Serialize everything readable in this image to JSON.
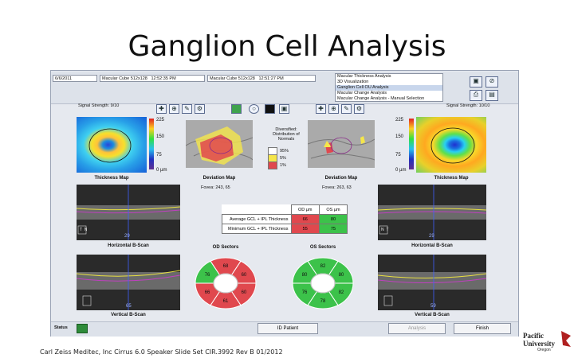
{
  "slide": {
    "title": "Ganglion Cell Analysis",
    "footer": "Carl Zeiss Meditec, Inc Cirrus 6.0 Speaker Slide Set CIR.3992 Rev B 01/2012",
    "logo_text": "Pacific University Oregon"
  },
  "header": {
    "date": "6/6/2011",
    "scan_left": "Macular Cube 512x128",
    "time_left": "12:52:35 PM",
    "scan_right": "Macular Cube 512x128",
    "time_right": "12:51:27 PM",
    "analysis_options": [
      "Macular Thickness Analysis",
      "3D Visualization",
      "Ganglion Cell OU Analysis",
      "Macular Change Analysis",
      "Macular Change Analysis - Manual Selection"
    ],
    "selected_index": 2
  },
  "left_eye": {
    "signal_strength": "Signal Strength: 9/10",
    "thickness_map_label": "Thickness Map",
    "deviation_map_label": "Deviation Map",
    "fovea": "Fovea: 243, 65",
    "horizontal_label": "Horizontal B-Scan",
    "vertical_label": "Vertical B-Scan",
    "h_index": "29",
    "v_index": "65"
  },
  "right_eye": {
    "signal_strength": "Signal Strength: 10/10",
    "thickness_map_label": "Thickness Map",
    "deviation_map_label": "Deviation Map",
    "fovea": "Fovea: 263, 63",
    "horizontal_label": "Horizontal B-Scan",
    "vertical_label": "Vertical B-Scan",
    "h_index": "29",
    "v_index": "59"
  },
  "scale": {
    "ticks": [
      "225",
      "150",
      "75",
      "0 µm"
    ]
  },
  "legend": {
    "title": "Diversified: Distribution of Normals",
    "items": [
      {
        "label": "95%",
        "color": "#ffffff"
      },
      {
        "label": "5%",
        "color": "#f5e64a"
      },
      {
        "label": "1%",
        "color": "#e0484e"
      }
    ]
  },
  "gcl_table": {
    "headers": [
      "",
      "OD µm",
      "OS µm"
    ],
    "rows": [
      {
        "label": "Average GCL + IPL Thickness",
        "od": "66",
        "os": "80",
        "od_color": "#e0484e",
        "os_color": "#3cc24a"
      },
      {
        "label": "Minimum GCL + IPL Thickness",
        "od": "55",
        "os": "75",
        "od_color": "#e0484e",
        "os_color": "#3cc24a"
      }
    ]
  },
  "sectors": {
    "od": {
      "title": "OD Sectors",
      "values": [
        "68",
        "60",
        "60",
        "61",
        "66",
        "76"
      ],
      "colors": [
        "#e0484e",
        "#e0484e",
        "#e0484e",
        "#e0484e",
        "#e0484e",
        "#3cc24a"
      ]
    },
    "os": {
      "title": "OS Sectors",
      "values": [
        "82",
        "80",
        "82",
        "78",
        "76",
        "80"
      ],
      "colors": [
        "#3cc24a",
        "#3cc24a",
        "#3cc24a",
        "#3cc24a",
        "#3cc24a",
        "#3cc24a"
      ]
    }
  },
  "status_bar": {
    "status_label": "Status",
    "buttons": {
      "id_patient": "ID Patient",
      "analysis": "Analysis",
      "finish": "Finish"
    }
  },
  "icons": [
    "crosshair-icon",
    "magnify-icon",
    "pen-icon",
    "settings-icon",
    "layers-icon",
    "print-icon",
    "save-icon",
    "stop-icon"
  ]
}
